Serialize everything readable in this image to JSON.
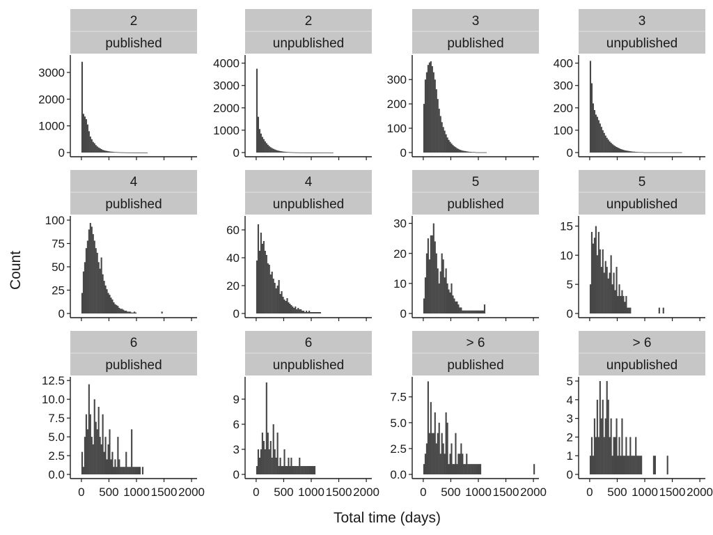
{
  "chart_data": {
    "type": "bar",
    "subtype": "faceted histogram",
    "xlabel": "Total time (days)",
    "ylabel": "Count",
    "x_ticks": [
      "0",
      "500",
      "1000",
      "1500",
      "2000"
    ],
    "xlim": [
      -100,
      2100
    ],
    "bin_width": 25,
    "bar_color": "#474747",
    "strip_color": "#c6c6c6",
    "grid": false,
    "panels": [
      {
        "row1": "2",
        "row2": "published",
        "ylim": [
          0,
          3600
        ],
        "y_ticks": [
          {
            "value": 0,
            "label": "0"
          },
          {
            "value": 1000,
            "label": "1000"
          },
          {
            "value": 2000,
            "label": "2000"
          },
          {
            "value": 3000,
            "label": "3000"
          }
        ],
        "bins": [
          {
            "start": 0,
            "counts": [
              3400,
              1450,
              1350,
              1250,
              1050,
              800,
              600,
              500,
              400,
              350,
              280,
              230,
              190,
              160,
              130,
              100,
              85,
              70,
              60,
              50,
              40,
              35,
              30,
              25,
              20,
              18,
              15,
              12,
              10,
              8,
              7,
              6,
              5,
              4,
              3,
              3,
              2,
              2,
              2,
              1,
              1,
              1,
              1,
              1,
              1,
              1,
              1,
              1
            ]
          }
        ]
      },
      {
        "row1": "2",
        "row2": "unpublished",
        "ylim": [
          0,
          4300
        ],
        "y_ticks": [
          {
            "value": 0,
            "label": "0"
          },
          {
            "value": 1000,
            "label": "1000"
          },
          {
            "value": 2000,
            "label": "2000"
          },
          {
            "value": 3000,
            "label": "3000"
          },
          {
            "value": 4000,
            "label": "4000"
          }
        ],
        "bins": [
          {
            "start": 0,
            "counts": [
              3750,
              1600,
              1050,
              850,
              700,
              600,
              500,
              420,
              350,
              290,
              240,
              200,
              170,
              140,
              115,
              95,
              80,
              65,
              55,
              45,
              38,
              32,
              27,
              22,
              18,
              15,
              12,
              10,
              8,
              7,
              6,
              5,
              4,
              3,
              3,
              2,
              2,
              2,
              1,
              1,
              1,
              1,
              1,
              1,
              1,
              1,
              1,
              1,
              1,
              1,
              1,
              1,
              1,
              1,
              1,
              1
            ]
          }
        ]
      },
      {
        "row1": "3",
        "row2": "published",
        "ylim": [
          0,
          395
        ],
        "y_ticks": [
          {
            "value": 0,
            "label": "0"
          },
          {
            "value": 100,
            "label": "100"
          },
          {
            "value": 200,
            "label": "200"
          },
          {
            "value": 300,
            "label": "300"
          }
        ],
        "bins": [
          {
            "start": 0,
            "counts": [
              200,
              300,
              330,
              360,
              370,
              375,
              355,
              330,
              300,
              260,
              220,
              180,
              150,
              125,
              105,
              90,
              75,
              62,
              52,
              44,
              37,
              31,
              26,
              22,
              18,
              15,
              12,
              10,
              8,
              7,
              6,
              5,
              4,
              3,
              3,
              2,
              2,
              2,
              1,
              1,
              1,
              1,
              1,
              1,
              1,
              1
            ]
          }
        ]
      },
      {
        "row1": "3",
        "row2": "unpublished",
        "ylim": [
          0,
          430
        ],
        "y_ticks": [
          {
            "value": 0,
            "label": "0"
          },
          {
            "value": 100,
            "label": "100"
          },
          {
            "value": 200,
            "label": "200"
          },
          {
            "value": 300,
            "label": "300"
          },
          {
            "value": 400,
            "label": "400"
          }
        ],
        "bins": [
          {
            "start": 0,
            "counts": [
              410,
              310,
              220,
              190,
              170,
              160,
              145,
              130,
              115,
              100,
              88,
              76,
              66,
              58,
              50,
              44,
              38,
              33,
              29,
              25,
              22,
              19,
              16,
              14,
              12,
              10,
              9,
              8,
              7,
              6,
              5,
              4,
              4,
              3,
              3,
              2,
              2,
              2,
              2,
              1,
              1,
              1,
              1,
              1,
              1,
              1,
              1,
              1,
              1,
              1,
              1,
              1,
              1,
              1,
              1,
              1,
              1,
              1,
              1,
              1,
              1,
              1,
              1,
              1,
              1,
              1,
              1
            ]
          }
        ]
      },
      {
        "row1": "4",
        "row2": "published",
        "ylim": [
          0,
          103
        ],
        "y_ticks": [
          {
            "value": 0,
            "label": "0"
          },
          {
            "value": 25,
            "label": "25"
          },
          {
            "value": 50,
            "label": "50"
          },
          {
            "value": 75,
            "label": "75"
          },
          {
            "value": 100,
            "label": "100"
          }
        ],
        "bins": [
          {
            "start": 0,
            "counts": [
              22,
              45,
              55,
              70,
              78,
              90,
              97,
              93,
              85,
              78,
              70,
              65,
              55,
              48,
              60,
              42,
              35,
              30,
              26,
              22,
              20,
              17,
              15,
              12,
              10,
              9,
              8,
              6,
              5,
              5,
              4,
              3,
              3,
              2,
              2,
              2,
              1,
              1,
              2,
              1
            ]
          },
          {
            "start": 1450,
            "counts": [
              2
            ]
          }
        ]
      },
      {
        "row1": "4",
        "row2": "unpublished",
        "ylim": [
          0,
          69
        ],
        "y_ticks": [
          {
            "value": 0,
            "label": "0"
          },
          {
            "value": 20,
            "label": "20"
          },
          {
            "value": 40,
            "label": "40"
          },
          {
            "value": 60,
            "label": "60"
          }
        ],
        "bins": [
          {
            "start": 0,
            "counts": [
              38,
              64,
              45,
              58,
              50,
              52,
              45,
              42,
              36,
              35,
              28,
              30,
              25,
              22,
              18,
              20,
              24,
              14,
              16,
              12,
              10,
              9,
              11,
              8,
              7,
              6,
              5,
              4,
              5,
              3,
              4,
              3,
              3,
              2,
              2,
              1,
              2,
              1,
              2,
              1,
              1,
              1,
              1,
              1,
              1,
              1,
              1
            ]
          }
        ]
      },
      {
        "row1": "5",
        "row2": "published",
        "ylim": [
          0,
          32
        ],
        "y_ticks": [
          {
            "value": 0,
            "label": "0"
          },
          {
            "value": 10,
            "label": "10"
          },
          {
            "value": 20,
            "label": "20"
          },
          {
            "value": 30,
            "label": "30"
          }
        ],
        "bins": [
          {
            "start": 0,
            "counts": [
              5,
              12,
              20,
              25,
              18,
              26,
              26,
              30,
              24,
              20,
              15,
              10,
              14,
              20,
              18,
              12,
              15,
              10,
              8,
              7,
              10,
              6,
              5,
              4,
              4,
              3,
              2,
              2,
              1,
              1,
              1,
              1,
              1,
              1,
              1,
              1,
              1,
              1,
              1,
              1,
              1,
              1,
              1,
              1,
              3
            ]
          }
        ]
      },
      {
        "row1": "5",
        "row2": "unpublished",
        "ylim": [
          0,
          16.5
        ],
        "y_ticks": [
          {
            "value": 0,
            "label": "0"
          },
          {
            "value": 5,
            "label": "5"
          },
          {
            "value": 10,
            "label": "10"
          },
          {
            "value": 15,
            "label": "15"
          }
        ],
        "bins": [
          {
            "start": 0,
            "counts": [
              5,
              14,
              12,
              13,
              15,
              10,
              14,
              11,
              8,
              11,
              7,
              9,
              8,
              6,
              7,
              10,
              5,
              7,
              4,
              8,
              3,
              5,
              3,
              4,
              3,
              2,
              3,
              1,
              1,
              1
            ]
          },
          {
            "start": 1250,
            "counts": [
              1
            ]
          },
          {
            "start": 1325,
            "counts": [
              1
            ]
          }
        ]
      },
      {
        "row1": "6",
        "row2": "published",
        "ylim": [
          0,
          12.8
        ],
        "y_ticks": [
          {
            "value": 0,
            "label": "0.0"
          },
          {
            "value": 2.5,
            "label": "2.5"
          },
          {
            "value": 5,
            "label": "5.0"
          },
          {
            "value": 7.5,
            "label": "7.5"
          },
          {
            "value": 10,
            "label": "10.0"
          },
          {
            "value": 12.5,
            "label": "12.5"
          }
        ],
        "bins": [
          {
            "start": 0,
            "counts": [
              3,
              1,
              5,
              8,
              6,
              12,
              8,
              5,
              4,
              10,
              7,
              6,
              9,
              5,
              4,
              8,
              3,
              5,
              2,
              4,
              6,
              2,
              3,
              1,
              2,
              1,
              5,
              2,
              1,
              1,
              1,
              1,
              3,
              1,
              1,
              1,
              6,
              1,
              1,
              1,
              1,
              1,
              1
            ]
          },
          {
            "start": 1100,
            "counts": [
              1
            ]
          }
        ]
      },
      {
        "row1": "6",
        "row2": "unpublished",
        "ylim": [
          0,
          11.5
        ],
        "y_ticks": [
          {
            "value": 0,
            "label": "0"
          },
          {
            "value": 3,
            "label": "3"
          },
          {
            "value": 6,
            "label": "6"
          },
          {
            "value": 9,
            "label": "9"
          }
        ],
        "bins": [
          {
            "start": 0,
            "counts": [
              1,
              3,
              2,
              3,
              5,
              4,
              3,
              11,
              5,
              3,
              4,
              2,
              6,
              3,
              2,
              5,
              1,
              2,
              1,
              1,
              3,
              1,
              1,
              2,
              1,
              2,
              1,
              1,
              1,
              1,
              1,
              2,
              1,
              1,
              1,
              1,
              1,
              1,
              1,
              1,
              1,
              1,
              1
            ]
          }
        ]
      },
      {
        "row1": "> 6",
        "row2": "published",
        "ylim": [
          0,
          9.3
        ],
        "y_ticks": [
          {
            "value": 0,
            "label": "0.0"
          },
          {
            "value": 2.5,
            "label": "2.5"
          },
          {
            "value": 5,
            "label": "5.0"
          },
          {
            "value": 7.5,
            "label": "7.5"
          }
        ],
        "bins": [
          {
            "start": 0,
            "counts": [
              1,
              2,
              3,
              9,
              4,
              7,
              4,
              4,
              6,
              3,
              4,
              5,
              2,
              4,
              3,
              2,
              6,
              5,
              1,
              2,
              3,
              1,
              1,
              4,
              1,
              2,
              2,
              3,
              2,
              1,
              1,
              2,
              1,
              1,
              1,
              1,
              1,
              1,
              1,
              1,
              1,
              1
            ]
          },
          {
            "start": 2000,
            "counts": [
              1
            ]
          }
        ]
      },
      {
        "row1": "> 6",
        "row2": "unpublished",
        "ylim": [
          0,
          5.15
        ],
        "y_ticks": [
          {
            "value": 0,
            "label": "0"
          },
          {
            "value": 1,
            "label": "1"
          },
          {
            "value": 2,
            "label": "2"
          },
          {
            "value": 3,
            "label": "3"
          },
          {
            "value": 4,
            "label": "4"
          },
          {
            "value": 5,
            "label": "5"
          }
        ],
        "bins": [
          {
            "start": 0,
            "counts": [
              1,
              2,
              1,
              3,
              2,
              4,
              2,
              5,
              3,
              4,
              2,
              3,
              5,
              4,
              2,
              3,
              1,
              2,
              2,
              3,
              1,
              2,
              1,
              3,
              1,
              1,
              2,
              1,
              1,
              2,
              1,
              1,
              1,
              2,
              1,
              1,
              1,
              1
            ]
          },
          {
            "start": 1150,
            "counts": [
              1,
              1
            ]
          },
          {
            "start": 1400,
            "counts": [
              1
            ]
          }
        ]
      }
    ]
  }
}
